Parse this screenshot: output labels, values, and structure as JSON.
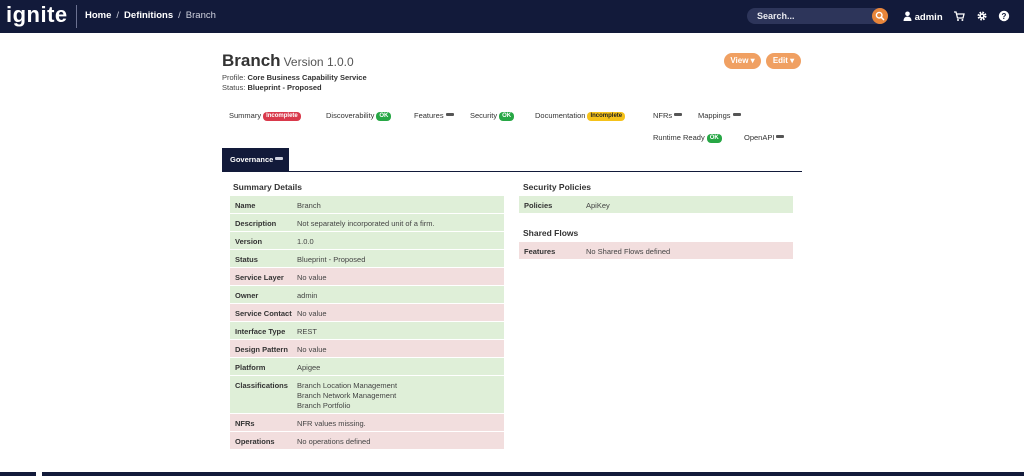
{
  "nav": {
    "brand": "ignite",
    "breadcrumb": [
      "Home",
      "Definitions",
      "Branch"
    ],
    "search_placeholder": "Search...",
    "user": "admin",
    "icons": [
      "search-icon",
      "user-icon",
      "cart-icon",
      "gear-icon",
      "help-icon"
    ],
    "colors": {
      "navbar": "#121a3a",
      "accent": "#e8853a"
    }
  },
  "header": {
    "title": "Branch",
    "version": "Version 1.0.0",
    "profile_label": "Profile:",
    "profile_value": "Core Business Capability Service",
    "status_label": "Status:",
    "status_value": "Blueprint - Proposed",
    "view_button": "View ▾",
    "edit_button": "Edit ▾"
  },
  "tabs": [
    {
      "label": "Summary",
      "badge": "Incomplete",
      "state": "red"
    },
    {
      "label": "Discoverability",
      "badge": "OK",
      "state": "green"
    },
    {
      "label": "Features",
      "badge": "",
      "state": "none"
    },
    {
      "label": "Security",
      "badge": "OK",
      "state": "green"
    },
    {
      "label": "Documentation",
      "badge": "Incomplete",
      "state": "yellow"
    },
    {
      "label": "NFRs",
      "badge": "",
      "state": "none"
    },
    {
      "label": "Mappings",
      "badge": "",
      "state": "none"
    },
    {
      "label": "Runtime Ready",
      "badge": "OK",
      "state": "green"
    },
    {
      "label": "OpenAPI",
      "badge": "",
      "state": "none"
    },
    {
      "label": "Governance",
      "badge": "",
      "state": "none",
      "active": true
    }
  ],
  "summary": {
    "title": "Summary Details",
    "rows": [
      {
        "key": "Name",
        "value": "Branch",
        "ok": true
      },
      {
        "key": "Description",
        "value": "Not separately incorporated unit of a firm.",
        "ok": true
      },
      {
        "key": "Version",
        "value": "1.0.0",
        "ok": true
      },
      {
        "key": "Status",
        "value": "Blueprint - Proposed",
        "ok": true
      },
      {
        "key": "Service Layer",
        "value": "No value",
        "ok": false
      },
      {
        "key": "Owner",
        "value": "admin",
        "ok": true
      },
      {
        "key": "Service Contact",
        "value": "No value",
        "ok": false
      },
      {
        "key": "Interface Type",
        "value": "REST",
        "ok": true
      },
      {
        "key": "Design Pattern",
        "value": "No value",
        "ok": false
      },
      {
        "key": "Platform",
        "value": "Apigee",
        "ok": true
      },
      {
        "key": "Classifications",
        "value": [
          "Branch Location Management",
          "Branch Network Management",
          "Branch Portfolio"
        ],
        "ok": true
      },
      {
        "key": "NFRs",
        "value": "NFR values missing.",
        "ok": false
      },
      {
        "key": "Operations",
        "value": "No operations defined",
        "ok": false
      }
    ]
  },
  "security": {
    "title": "Security Policies",
    "rows": [
      {
        "key": "Policies",
        "value": "ApiKey",
        "ok": true
      }
    ]
  },
  "shared_flows": {
    "title": "Shared Flows",
    "rows": [
      {
        "key": "Features",
        "value": "No Shared Flows defined",
        "ok": false
      }
    ]
  }
}
